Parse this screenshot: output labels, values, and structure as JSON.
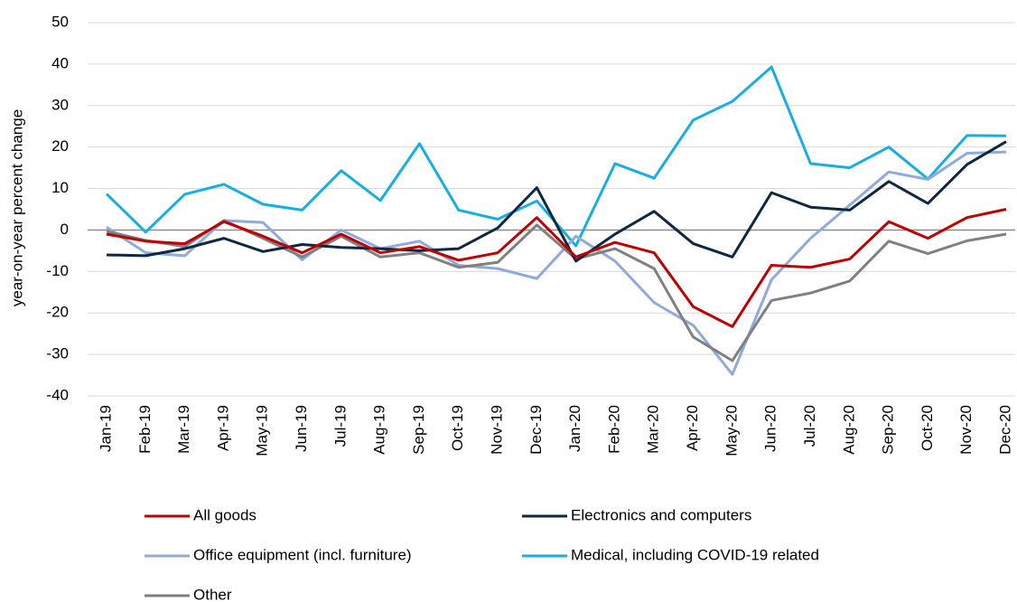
{
  "chart_data": {
    "type": "line",
    "y_label": "year-on-year percent change",
    "categories": [
      "Jan-19",
      "Feb-19",
      "Mar-19",
      "Apr-19",
      "May-19",
      "Jun-19",
      "Jul-19",
      "Aug-19",
      "Sep-19",
      "Oct-19",
      "Nov-19",
      "Dec-19",
      "Jan-20",
      "Feb-20",
      "Mar-20",
      "Apr-20",
      "May-20",
      "Jun-20",
      "Jul-20",
      "Aug-20",
      "Sep-20",
      "Oct-20",
      "Nov-20",
      "Dec-20"
    ],
    "series": [
      {
        "name": "All goods",
        "color": "#c00000",
        "values": [
          -1,
          -2.7,
          -3.3,
          2,
          -1.5,
          -5.5,
          -1,
          -5.5,
          -4,
          -7.3,
          -5.5,
          3,
          -6.5,
          -3,
          -5.5,
          -18.5,
          -23.3,
          -8.5,
          -9,
          -7,
          2,
          -2,
          3,
          5
        ]
      },
      {
        "name": "Electronics and computers",
        "color": "#0e2841",
        "values": [
          -6,
          -6.2,
          -4.5,
          -2,
          -5.2,
          -3.5,
          -4.2,
          -4.5,
          -5,
          -4.5,
          0.5,
          10.2,
          -7.5,
          -1,
          4.5,
          -3.3,
          -6.5,
          9,
          5.5,
          4.8,
          11.7,
          6.4,
          15.8,
          21.3
        ]
      },
      {
        "name": "Office equipment (incl. furniture)",
        "color": "#8faadc",
        "values": [
          0.7,
          -5.5,
          -6.2,
          2.3,
          1.8,
          -7.2,
          0,
          -4.5,
          -2.7,
          -8.5,
          -9.3,
          -11.7,
          -1.5,
          -7.5,
          -17.5,
          -23,
          -34.8,
          -12,
          -2,
          6,
          14,
          12.2,
          18.5,
          18.8
        ]
      },
      {
        "name": "Medical, including COVID-19 related",
        "color": "#17aee3",
        "values": [
          8.7,
          -0.5,
          8.6,
          11,
          6.2,
          4.8,
          14.3,
          7.1,
          20.8,
          4.8,
          2.6,
          7,
          -3.8,
          16,
          12.5,
          26.5,
          31,
          39.3,
          16,
          15,
          20,
          12.3,
          22.8,
          22.7
        ]
      },
      {
        "name": "Other",
        "color": "#808080",
        "values": [
          -0.3,
          -2.5,
          -4,
          2.3,
          -2,
          -6.5,
          -1.5,
          -6.5,
          -5.5,
          -9,
          -7.8,
          1.2,
          -7,
          -4.5,
          -9.3,
          -25.8,
          -31.5,
          -17,
          -15.2,
          -12.3,
          -2.7,
          -5.7,
          -2.6,
          -1
        ]
      }
    ],
    "ylim": [
      -40,
      50
    ],
    "yticks": [
      50,
      40,
      30,
      20,
      10,
      0,
      -10,
      -20,
      -30,
      -40
    ],
    "grid": true,
    "legend": "bottom"
  }
}
